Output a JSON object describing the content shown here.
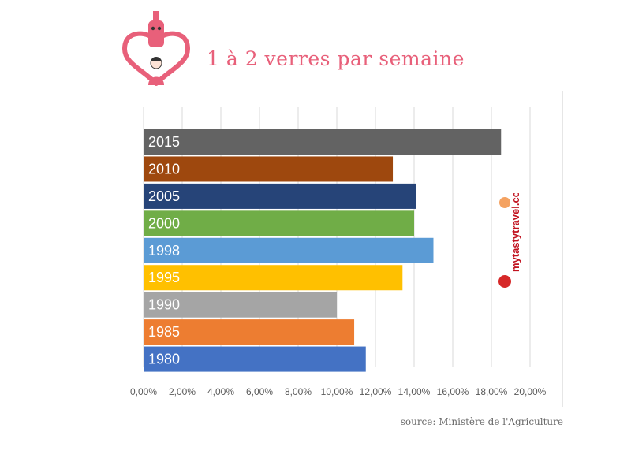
{
  "title": "1 à 2 verres par semaine",
  "source": "source: Ministère de l'Agriculture",
  "watermark": "mytastytravel.com",
  "colors": {
    "title": "#e8607a",
    "grid": "#d9d9d9",
    "axis_text": "#595959",
    "bar_label": "#ffffff"
  },
  "chart_data": {
    "type": "bar",
    "orientation": "horizontal",
    "categories": [
      "2015",
      "2010",
      "2005",
      "2000",
      "1998",
      "1995",
      "1990",
      "1985",
      "1980"
    ],
    "values": [
      18.5,
      12.9,
      14.1,
      14.0,
      15.0,
      13.4,
      10.0,
      10.9,
      11.5
    ],
    "bar_colors": [
      "#636363",
      "#9e480e",
      "#264478",
      "#70ad47",
      "#5b9bd5",
      "#ffc000",
      "#a5a5a5",
      "#ed7d31",
      "#4472c4"
    ],
    "xlim": [
      0,
      20
    ],
    "xticks": [
      "0,00%",
      "2,00%",
      "4,00%",
      "6,00%",
      "8,00%",
      "10,00%",
      "12,00%",
      "14,00%",
      "16,00%",
      "18,00%",
      "20,00%"
    ],
    "grid": true,
    "legend": false
  }
}
